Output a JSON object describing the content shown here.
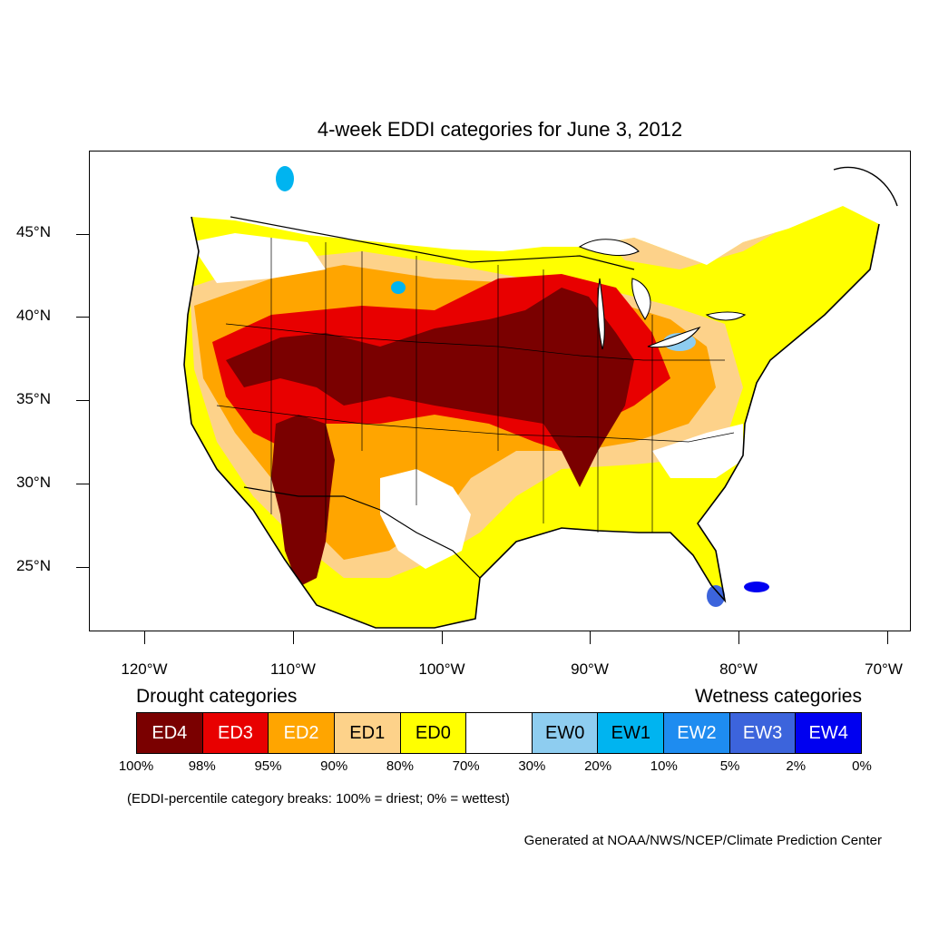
{
  "title": "4-week EDDI categories for June 3, 2012",
  "map": {
    "lon_ticks": [
      "120°W",
      "110°W",
      "100°W",
      "90°W",
      "80°W",
      "70°W"
    ],
    "lat_ticks": [
      "45°N",
      "40°N",
      "35°N",
      "30°N",
      "25°N"
    ],
    "lon_range": [
      -124.5,
      -68.5
    ],
    "lat_range": [
      21.0,
      49.5
    ]
  },
  "legend": {
    "drought_heading": "Drought categories",
    "wetness_heading": "Wetness categories",
    "categories": [
      {
        "label": "ED4",
        "color": "#7a0000",
        "text_color": "#ffffff"
      },
      {
        "label": "ED3",
        "color": "#e80000",
        "text_color": "#ffffff"
      },
      {
        "label": "ED2",
        "color": "#ffa500",
        "text_color": "#ffffff"
      },
      {
        "label": "ED1",
        "color": "#fdd28a",
        "text_color": "#000000"
      },
      {
        "label": "ED0",
        "color": "#ffff00",
        "text_color": "#000000"
      },
      {
        "label": "",
        "color": "#ffffff",
        "text_color": "#000000"
      },
      {
        "label": "EW0",
        "color": "#8ecdf0",
        "text_color": "#000000"
      },
      {
        "label": "EW1",
        "color": "#00b4f0",
        "text_color": "#000000"
      },
      {
        "label": "EW2",
        "color": "#1e8cf0",
        "text_color": "#ffffff"
      },
      {
        "label": "EW3",
        "color": "#3c64dc",
        "text_color": "#ffffff"
      },
      {
        "label": "EW4",
        "color": "#0000f0",
        "text_color": "#ffffff"
      }
    ],
    "breaks": [
      "100%",
      "98%",
      "95%",
      "90%",
      "80%",
      "70%",
      "30%",
      "20%",
      "10%",
      "5%",
      "2%",
      "0%"
    ]
  },
  "note": "(EDDI-percentile category breaks: 100% = driest; 0% = wettest)",
  "credit": "Generated at NOAA/NWS/NCEP/Climate Prediction Center"
}
